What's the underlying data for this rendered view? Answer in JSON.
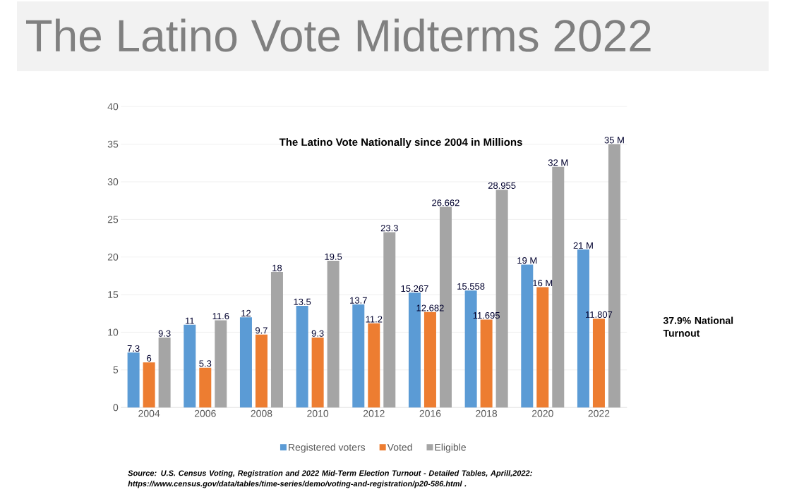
{
  "chart_data": {
    "type": "bar",
    "title": "The Latino Vote Midterms 2022",
    "subtitle": "The Latino Vote Nationally since 2004 in Millions",
    "categories": [
      "2004",
      "2006",
      "2008",
      "2010",
      "2012",
      "2016",
      "2018",
      "2020",
      "2022"
    ],
    "series": [
      {
        "name": "Registered voters",
        "color": "#5b9bd5",
        "values": [
          7.3,
          11,
          12,
          13.5,
          13.7,
          15.267,
          15.558,
          19,
          21
        ],
        "value_labels": [
          "7.3",
          "11",
          "12",
          "13.5",
          "13.7",
          "15.267",
          "15.558",
          "19 M",
          "21 M"
        ]
      },
      {
        "name": "Voted",
        "color": "#ed7d31",
        "values": [
          6,
          5.3,
          9.7,
          9.3,
          11.2,
          12.682,
          11.695,
          16,
          11.807
        ],
        "value_labels": [
          "6",
          "5.3",
          "9.7",
          "9.3",
          "11.2",
          "12.682",
          "11.695",
          "16 M",
          "11.807"
        ]
      },
      {
        "name": "Eligible",
        "color": "#a5a5a5",
        "values": [
          9.3,
          11.6,
          18,
          19.5,
          23.3,
          26.662,
          28.955,
          32,
          35
        ],
        "value_labels": [
          "9.3",
          "11.6",
          "18",
          "19.5",
          "23.3",
          "26.662",
          "28.955",
          "32 M",
          "35 M"
        ]
      }
    ],
    "ylim": [
      0,
      40
    ],
    "yticks": [
      0,
      5,
      10,
      15,
      20,
      25,
      30,
      35,
      40
    ],
    "grid": "y",
    "legend": "bottom",
    "annotations": [
      "37.9% National Turnout",
      "Source: U.S. Census Voting, Registration and 2022 Mid-Term Election Turnout - Detailed Tables, Aprill,2022: https://www.census.gov/data/tables/time-series/demo/voting-and-registration/p20-586.html ."
    ]
  }
}
